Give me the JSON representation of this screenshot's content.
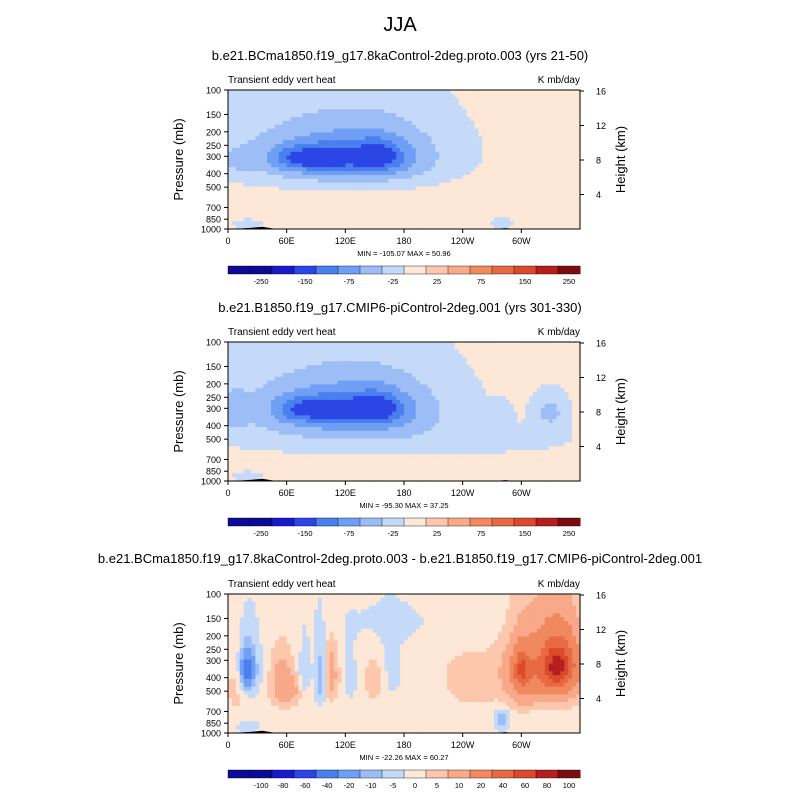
{
  "figure_title": "JJA",
  "colors": {
    "deep_blue": "#1a1acc",
    "mid_blue": "#4a7ff0",
    "light_blue": "#c4daf8",
    "pale_orange": "#fde7d6",
    "orange": "#f0895e",
    "deep_red": "#b41e1e"
  },
  "chart_data": [
    {
      "type": "heatmap",
      "title": "b.e21.BCma1850.f19_g17.8kaControl-2deg.proto.003 (yrs 21-50)",
      "left_label": "Transient eddy vert heat",
      "right_label": "K mb/day",
      "ylabel": "Pressure (mb)",
      "ylabel_right": "Height (km)",
      "x_ticks": [
        "0",
        "60E",
        "120E",
        "180",
        "120W",
        "60W"
      ],
      "x_tick_lons": [
        0,
        60,
        120,
        180,
        240,
        300
      ],
      "xlim": [
        0,
        360
      ],
      "y_ticks": [
        "100",
        "150",
        "200",
        "250",
        "300",
        "400",
        "500",
        "700",
        "850",
        "1000"
      ],
      "y_tick_values": [
        100,
        150,
        200,
        250,
        300,
        400,
        500,
        700,
        850,
        1000
      ],
      "ylim": [
        100,
        1000
      ],
      "height_ticks": [
        "16",
        "12",
        "8",
        "4"
      ],
      "height_tick_values": [
        16,
        12,
        8,
        4
      ],
      "stats": "MIN = -105.07   MAX =  50.96",
      "colorbar_labels": [
        "-250",
        "-150",
        "-75",
        "-25",
        "25",
        "75",
        "150",
        "250"
      ],
      "levels": [
        -250,
        -200,
        -150,
        -100,
        -75,
        -50,
        -25,
        0,
        25,
        50,
        75,
        100,
        150,
        200,
        250
      ],
      "background_value": 10,
      "features": [
        {
          "lon": 60,
          "p": 250,
          "dlon": 130,
          "dp": 200,
          "value": -20
        },
        {
          "lon": 155,
          "p": 250,
          "dlon": 100,
          "dp": 200,
          "value": -20
        },
        {
          "lon": 90,
          "p": 320,
          "dlon": 75,
          "dp": 140,
          "value": -40
        },
        {
          "lon": 155,
          "p": 320,
          "dlon": 60,
          "dp": 140,
          "value": -40
        },
        {
          "lon": 70,
          "p": 310,
          "dlon": 25,
          "dp": 60,
          "value": -50
        },
        {
          "lon": 100,
          "p": 310,
          "dlon": 22,
          "dp": 60,
          "value": -50
        },
        {
          "lon": 152,
          "p": 300,
          "dlon": 25,
          "dp": 70,
          "value": -60
        },
        {
          "lon": 20,
          "p": 920,
          "dlon": 14,
          "dp": 70,
          "value": -30
        },
        {
          "lon": 280,
          "p": 900,
          "dlon": 10,
          "dp": 80,
          "value": -30
        },
        {
          "lon": 10,
          "p": 330,
          "dlon": 14,
          "dp": 60,
          "value": -20
        }
      ]
    },
    {
      "type": "heatmap",
      "title": "b.e21.B1850.f19_g17.CMIP6-piControl-2deg.001 (yrs 301-330)",
      "left_label": "Transient eddy vert heat",
      "right_label": "K mb/day",
      "ylabel": "Pressure (mb)",
      "ylabel_right": "Height (km)",
      "x_ticks": [
        "0",
        "60E",
        "120E",
        "180",
        "120W",
        "60W"
      ],
      "x_tick_lons": [
        0,
        60,
        120,
        180,
        240,
        300
      ],
      "xlim": [
        0,
        360
      ],
      "y_ticks": [
        "100",
        "150",
        "200",
        "250",
        "300",
        "400",
        "500",
        "700",
        "850",
        "1000"
      ],
      "y_tick_values": [
        100,
        150,
        200,
        250,
        300,
        400,
        500,
        700,
        850,
        1000
      ],
      "ylim": [
        100,
        1000
      ],
      "height_ticks": [
        "16",
        "12",
        "8",
        "4"
      ],
      "height_tick_values": [
        16,
        12,
        8,
        4
      ],
      "stats": "MIN = -95.30   MAX =  37.25",
      "colorbar_labels": [
        "-250",
        "-150",
        "-75",
        "-25",
        "25",
        "75",
        "150",
        "250"
      ],
      "levels": [
        -250,
        -200,
        -150,
        -100,
        -75,
        -50,
        -25,
        0,
        25,
        50,
        75,
        100,
        150,
        200,
        250
      ],
      "background_value": 10,
      "features": [
        {
          "lon": 60,
          "p": 250,
          "dlon": 130,
          "dp": 200,
          "value": -20
        },
        {
          "lon": 160,
          "p": 250,
          "dlon": 100,
          "dp": 200,
          "value": -20
        },
        {
          "lon": 88,
          "p": 320,
          "dlon": 70,
          "dp": 140,
          "value": -40
        },
        {
          "lon": 155,
          "p": 320,
          "dlon": 60,
          "dp": 140,
          "value": -40
        },
        {
          "lon": 75,
          "p": 305,
          "dlon": 25,
          "dp": 60,
          "value": -50
        },
        {
          "lon": 110,
          "p": 305,
          "dlon": 22,
          "dp": 60,
          "value": -50
        },
        {
          "lon": 152,
          "p": 300,
          "dlon": 25,
          "dp": 70,
          "value": -60
        },
        {
          "lon": 330,
          "p": 320,
          "dlon": 18,
          "dp": 100,
          "value": -40
        },
        {
          "lon": 280,
          "p": 330,
          "dlon": 10,
          "dp": 60,
          "value": -20
        },
        {
          "lon": 5,
          "p": 320,
          "dlon": 14,
          "dp": 100,
          "value": -30
        },
        {
          "lon": 20,
          "p": 920,
          "dlon": 14,
          "dp": 70,
          "value": -30
        },
        {
          "lon": 180,
          "p": 520,
          "dlon": 200,
          "dp": 150,
          "value": -20
        }
      ]
    },
    {
      "type": "heatmap",
      "title": "b.e21.BCma1850.f19_g17.8kaControl-2deg.proto.003 - b.e21.B1850.f19_g17.CMIP6-piControl-2deg.001",
      "left_label": "Transient eddy vert heat",
      "right_label": "K mb/day",
      "ylabel": "Pressure (mb)",
      "ylabel_right": "Height (km)",
      "x_ticks": [
        "0",
        "60E",
        "120E",
        "180",
        "120W",
        "60W"
      ],
      "x_tick_lons": [
        0,
        60,
        120,
        180,
        240,
        300
      ],
      "xlim": [
        0,
        360
      ],
      "y_ticks": [
        "100",
        "150",
        "200",
        "250",
        "300",
        "400",
        "500",
        "700",
        "850",
        "1000"
      ],
      "y_tick_values": [
        100,
        150,
        200,
        250,
        300,
        400,
        500,
        700,
        850,
        1000
      ],
      "ylim": [
        100,
        1000
      ],
      "height_ticks": [
        "16",
        "12",
        "8",
        "4"
      ],
      "height_tick_values": [
        16,
        12,
        8,
        4
      ],
      "stats": "MIN = -22.26   MAX =  60.27",
      "colorbar_labels": [
        "-100",
        "-80",
        "-60",
        "-40",
        "-20",
        "-10",
        "-5",
        "0",
        "5",
        "10",
        "20",
        "40",
        "60",
        "80",
        "100"
      ],
      "levels": [
        -100,
        -80,
        -60,
        -40,
        -20,
        -10,
        -5,
        0,
        5,
        10,
        20,
        40,
        60,
        80,
        100
      ],
      "background_value": 2,
      "features": [
        {
          "lon": 20,
          "p": 350,
          "dlon": 12,
          "dp": 180,
          "value": -12
        },
        {
          "lon": 20,
          "p": 350,
          "dlon": 6,
          "dp": 90,
          "value": -22
        },
        {
          "lon": 8,
          "p": 450,
          "dlon": 10,
          "dp": 250,
          "value": 6
        },
        {
          "lon": 55,
          "p": 420,
          "dlon": 12,
          "dp": 200,
          "value": 12
        },
        {
          "lon": 65,
          "p": 500,
          "dlon": 15,
          "dp": 120,
          "value": 8
        },
        {
          "lon": 78,
          "p": 400,
          "dlon": 6,
          "dp": 160,
          "value": -8
        },
        {
          "lon": 95,
          "p": 400,
          "dlon": 6,
          "dp": 200,
          "value": -12
        },
        {
          "lon": 105,
          "p": 380,
          "dlon": 8,
          "dp": 200,
          "value": 12
        },
        {
          "lon": 125,
          "p": 400,
          "dlon": 6,
          "dp": 150,
          "value": -6
        },
        {
          "lon": 150,
          "p": 420,
          "dlon": 10,
          "dp": 150,
          "value": 8
        },
        {
          "lon": 165,
          "p": 380,
          "dlon": 15,
          "dp": 200,
          "value": -4
        },
        {
          "lon": 250,
          "p": 400,
          "dlon": 50,
          "dp": 400,
          "value": 4
        },
        {
          "lon": 290,
          "p": 380,
          "dlon": 8,
          "dp": 150,
          "value": -8
        },
        {
          "lon": 300,
          "p": 380,
          "dlon": 18,
          "dp": 200,
          "value": 25
        },
        {
          "lon": 300,
          "p": 350,
          "dlon": 8,
          "dp": 90,
          "value": 40
        },
        {
          "lon": 335,
          "p": 340,
          "dlon": 28,
          "dp": 230,
          "value": 30
        },
        {
          "lon": 337,
          "p": 330,
          "dlon": 16,
          "dp": 120,
          "value": 60
        },
        {
          "lon": 280,
          "p": 800,
          "dlon": 8,
          "dp": 150,
          "value": -12
        },
        {
          "lon": 20,
          "p": 900,
          "dlon": 12,
          "dp": 80,
          "value": -6
        },
        {
          "lon": 200,
          "p": 160,
          "dlon": 120,
          "dp": 80,
          "value": -3
        }
      ]
    }
  ]
}
